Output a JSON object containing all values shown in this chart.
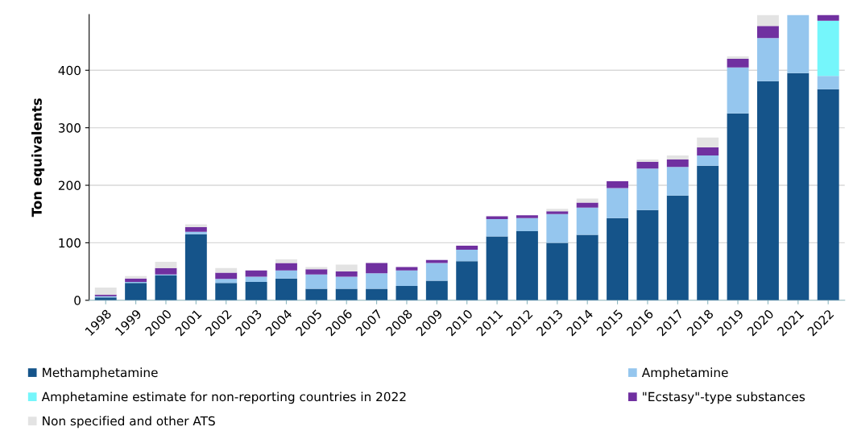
{
  "chart_data": {
    "type": "bar",
    "stacked": true,
    "ylabel": "Ton equivalents",
    "categories": [
      "1998",
      "1999",
      "2000",
      "2001",
      "2002",
      "2003",
      "2004",
      "2005",
      "2006",
      "2007",
      "2008",
      "2009",
      "2010",
      "2011",
      "2012",
      "2013",
      "2014",
      "2015",
      "2016",
      "2017",
      "2018",
      "2019",
      "2020",
      "2021",
      "2022"
    ],
    "series": [
      {
        "name": "Methamphetamine",
        "color": "#15548a",
        "values": [
          5,
          30,
          43,
          115,
          30,
          32,
          38,
          20,
          20,
          20,
          25,
          34,
          68,
          111,
          120,
          100,
          114,
          143,
          157,
          182,
          234,
          325,
          381,
          395,
          367
        ]
      },
      {
        "name": "Amphetamine",
        "color": "#95c6ee",
        "values": [
          2,
          2,
          2,
          4,
          7,
          9,
          14,
          25,
          21,
          27,
          27,
          31,
          20,
          30,
          23,
          50,
          47,
          52,
          72,
          50,
          18,
          80,
          75,
          101,
          23
        ]
      },
      {
        "name": "Amphetamine estimate for non-reporting countries in 2022",
        "color": "#75f6fb",
        "values": [
          0,
          0,
          0,
          0,
          0,
          0,
          0,
          0,
          0,
          0,
          0,
          0,
          0,
          0,
          0,
          0,
          0,
          0,
          0,
          0,
          0,
          0,
          0,
          0,
          96
        ]
      },
      {
        "name": "\"Ecstasy\"-type substances",
        "color": "#7030a0",
        "values": [
          3,
          6,
          11,
          8,
          11,
          11,
          13,
          9,
          9,
          18,
          6,
          5,
          7,
          5,
          5,
          5,
          9,
          12,
          12,
          13,
          14,
          15,
          21,
          0,
          10
        ]
      },
      {
        "name": "Non specified and other ATS",
        "color": "#e3e3e3",
        "values": [
          12,
          4,
          11,
          5,
          8,
          null,
          6,
          4,
          12,
          0,
          null,
          null,
          null,
          0,
          0,
          4,
          7,
          0,
          4,
          7,
          17,
          4,
          19,
          0,
          0
        ]
      }
    ],
    "ylim": [
      0,
      497
    ],
    "yticks": [
      0,
      100,
      200,
      300,
      400
    ],
    "grid": "y",
    "legend": "bottom"
  }
}
